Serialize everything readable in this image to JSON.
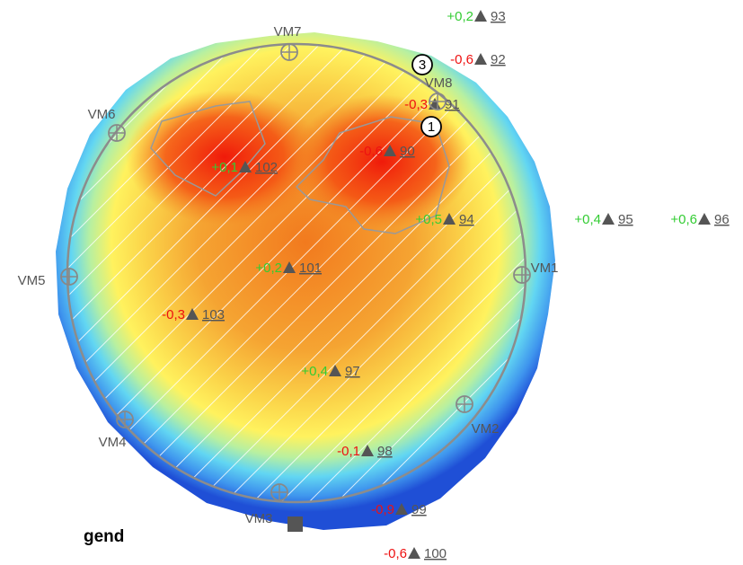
{
  "points": [
    {
      "delta": "+0,2",
      "color": "#33cc33",
      "id": "93"
    },
    {
      "delta": "-0,6",
      "color": "#ee1111",
      "id": "92"
    },
    {
      "delta": "-0,3",
      "color": "#ee1111",
      "id": "91"
    },
    {
      "delta": "-0,6",
      "color": "#ee1111",
      "id": "90"
    },
    {
      "delta": "+0,1",
      "color": "#33cc33",
      "id": "102"
    },
    {
      "delta": "+0,5",
      "color": "#33cc33",
      "id": "94"
    },
    {
      "delta": "+0,4",
      "color": "#33cc33",
      "id": "95"
    },
    {
      "delta": "+0,6",
      "color": "#33cc33",
      "id": "96"
    },
    {
      "delta": "+0,2",
      "color": "#33cc33",
      "id": "101"
    },
    {
      "delta": "-0,3",
      "color": "#ee1111",
      "id": "103"
    },
    {
      "delta": "+0,4",
      "color": "#33cc33",
      "id": "97"
    },
    {
      "delta": "-0,1",
      "color": "#ee1111",
      "id": "98"
    },
    {
      "delta": "-0,9",
      "color": "#ee1111",
      "id": "99"
    },
    {
      "delta": "-0,6",
      "color": "#ee1111",
      "id": "100"
    }
  ],
  "stations": [
    {
      "label": "VM7"
    },
    {
      "label": "VM8"
    },
    {
      "label": "VM6"
    },
    {
      "label": "VM5"
    },
    {
      "label": "VM1"
    },
    {
      "label": "VM2"
    },
    {
      "label": "VM4"
    },
    {
      "label": "VM3"
    }
  ],
  "markers": [
    {
      "label": "3"
    },
    {
      "label": "1"
    }
  ],
  "legend": {
    "title": "gend"
  }
}
